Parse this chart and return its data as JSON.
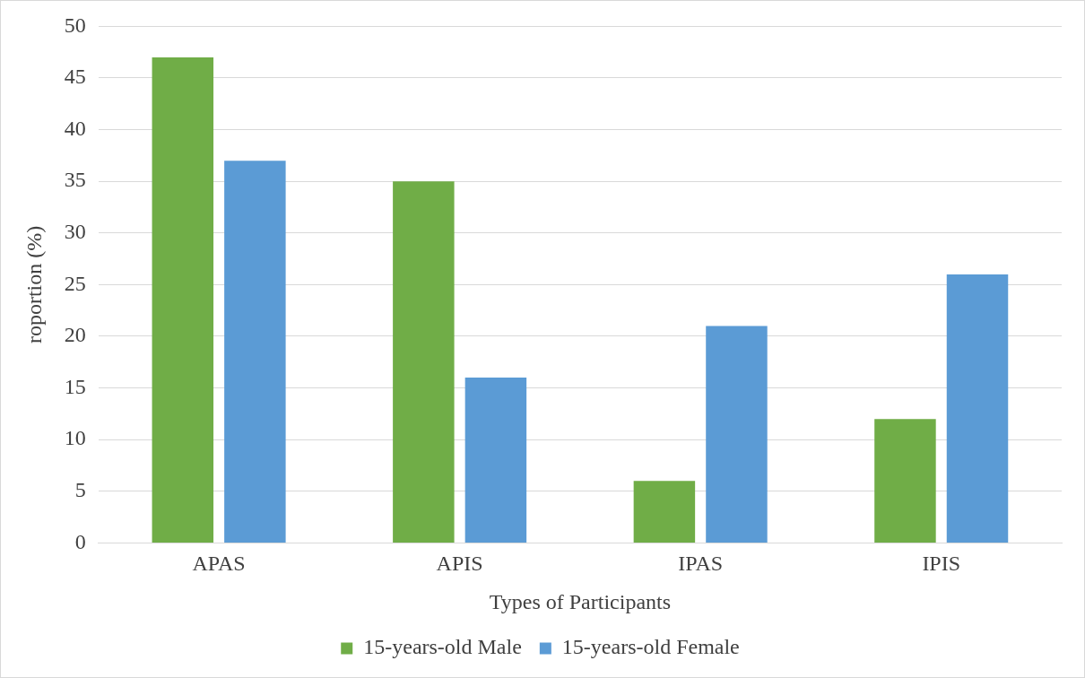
{
  "chart_data": {
    "type": "bar",
    "xlabel": "Types of Participants",
    "ylabel": "roportion (%)",
    "categories": [
      "APAS",
      "APIS",
      "IPAS",
      "IPIS"
    ],
    "series": [
      {
        "name": "15-years-old Male",
        "color": "#70ad47",
        "values": [
          47,
          35,
          6,
          12
        ]
      },
      {
        "name": "15-years-old Female",
        "color": "#5b9bd5",
        "values": [
          37,
          16,
          21,
          26
        ]
      }
    ],
    "ylim": [
      0,
      50
    ],
    "yticks": [
      0,
      5,
      10,
      15,
      20,
      25,
      30,
      35,
      40,
      45,
      50
    ],
    "grid": "y",
    "legend": "bottom"
  }
}
